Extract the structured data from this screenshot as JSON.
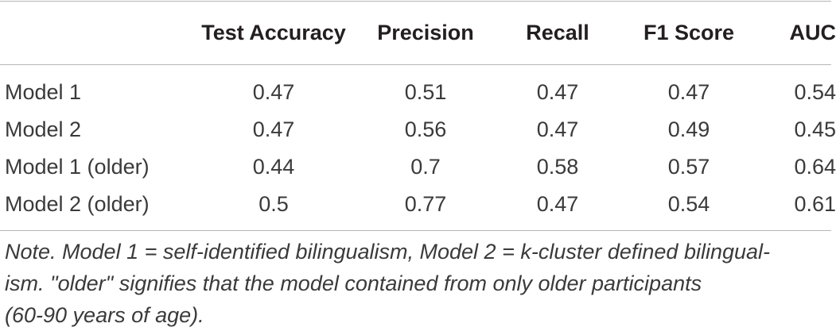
{
  "table": {
    "headers": [
      "",
      "Test Accuracy",
      "Precision",
      "Recall",
      "F1 Score",
      "AUC"
    ],
    "rows": [
      [
        "Model 1",
        "0.47",
        "0.51",
        "0.47",
        "0.47",
        "0.54"
      ],
      [
        "Model 2",
        "0.47",
        "0.56",
        "0.47",
        "0.49",
        "0.45"
      ],
      [
        "Model 1 (older)",
        "0.44",
        "0.7",
        "0.58",
        "0.57",
        "0.64"
      ],
      [
        "Model 2 (older)",
        "0.5",
        "0.77",
        "0.47",
        "0.54",
        "0.61"
      ]
    ]
  },
  "note": {
    "line1": "Note. Model 1 = self-identified bilingualism, Model 2 = k-cluster defined bilingual-",
    "line2": "ism. \"older\" signifies that the model contained from only older participants",
    "line3": "(60-90 years of age)."
  }
}
